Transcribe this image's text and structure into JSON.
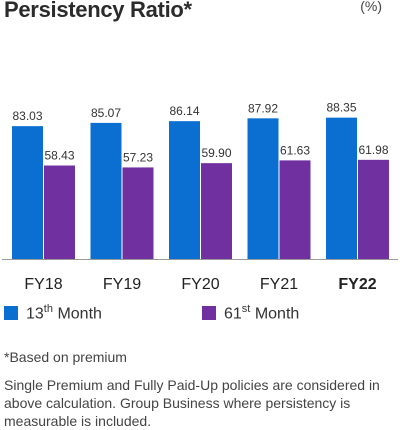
{
  "unit": "(%)",
  "colors": {
    "series1": "#0a6fd1",
    "series2": "#7030a0",
    "axis": "#9a9a9a"
  },
  "chart_data": {
    "type": "bar",
    "title": "Persistency Ratio*",
    "categories": [
      "FY18",
      "FY19",
      "FY20",
      "FY21",
      "FY22"
    ],
    "bold_category": "FY22",
    "ylim": [
      0,
      100
    ],
    "grid": false,
    "legend_position": "bottom",
    "series": [
      {
        "name_base": "13",
        "name_sup": "th",
        "name_rest": "Month",
        "color": "#0a6fd1",
        "values": [
          83.03,
          85.07,
          86.14,
          87.92,
          88.35
        ]
      },
      {
        "name_base": "61",
        "name_sup": "st",
        "name_rest": "Month",
        "color": "#7030a0",
        "values": [
          58.43,
          57.23,
          59.9,
          61.63,
          61.98
        ]
      }
    ]
  },
  "notes": {
    "footnote": "*Based on premium",
    "description": "Single Premium and Fully Paid-Up policies are considered in above calculation. Group Business where persistency is measurable is included."
  }
}
